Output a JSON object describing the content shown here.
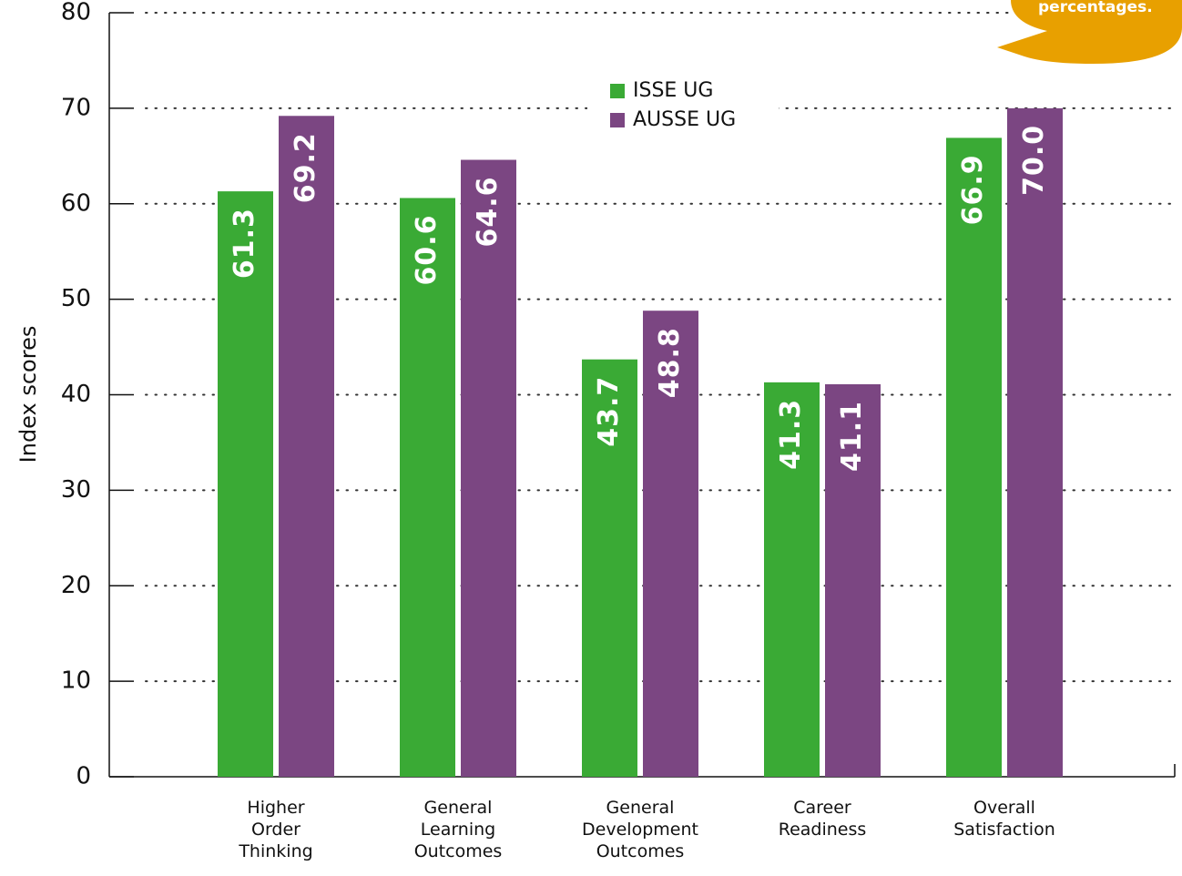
{
  "chart_data": {
    "type": "bar",
    "ylabel": "Index scores",
    "annotation": "percentages.",
    "categories": [
      "Higher Order Thinking",
      "General Learning Outcomes",
      "General Development Outcomes",
      "Career Readiness",
      "Overall Satisfaction"
    ],
    "series": [
      {
        "name": "ISSE UG",
        "color": "#3aaa35",
        "values": [
          61.3,
          60.6,
          43.7,
          41.3,
          66.9
        ],
        "value_labels": [
          "61.3",
          "60.6",
          "43.7",
          "41.3",
          "66.9"
        ]
      },
      {
        "name": "AUSSE UG",
        "color": "#7b4682",
        "values": [
          69.2,
          64.6,
          48.8,
          41.1,
          70.0
        ],
        "value_labels": [
          "69.2",
          "64.6",
          "48.8",
          "41.1",
          "70.0"
        ]
      }
    ],
    "ylim": [
      0,
      80
    ],
    "yticks": [
      0,
      10,
      20,
      30,
      40,
      50,
      60,
      70,
      80
    ],
    "grid": true
  }
}
